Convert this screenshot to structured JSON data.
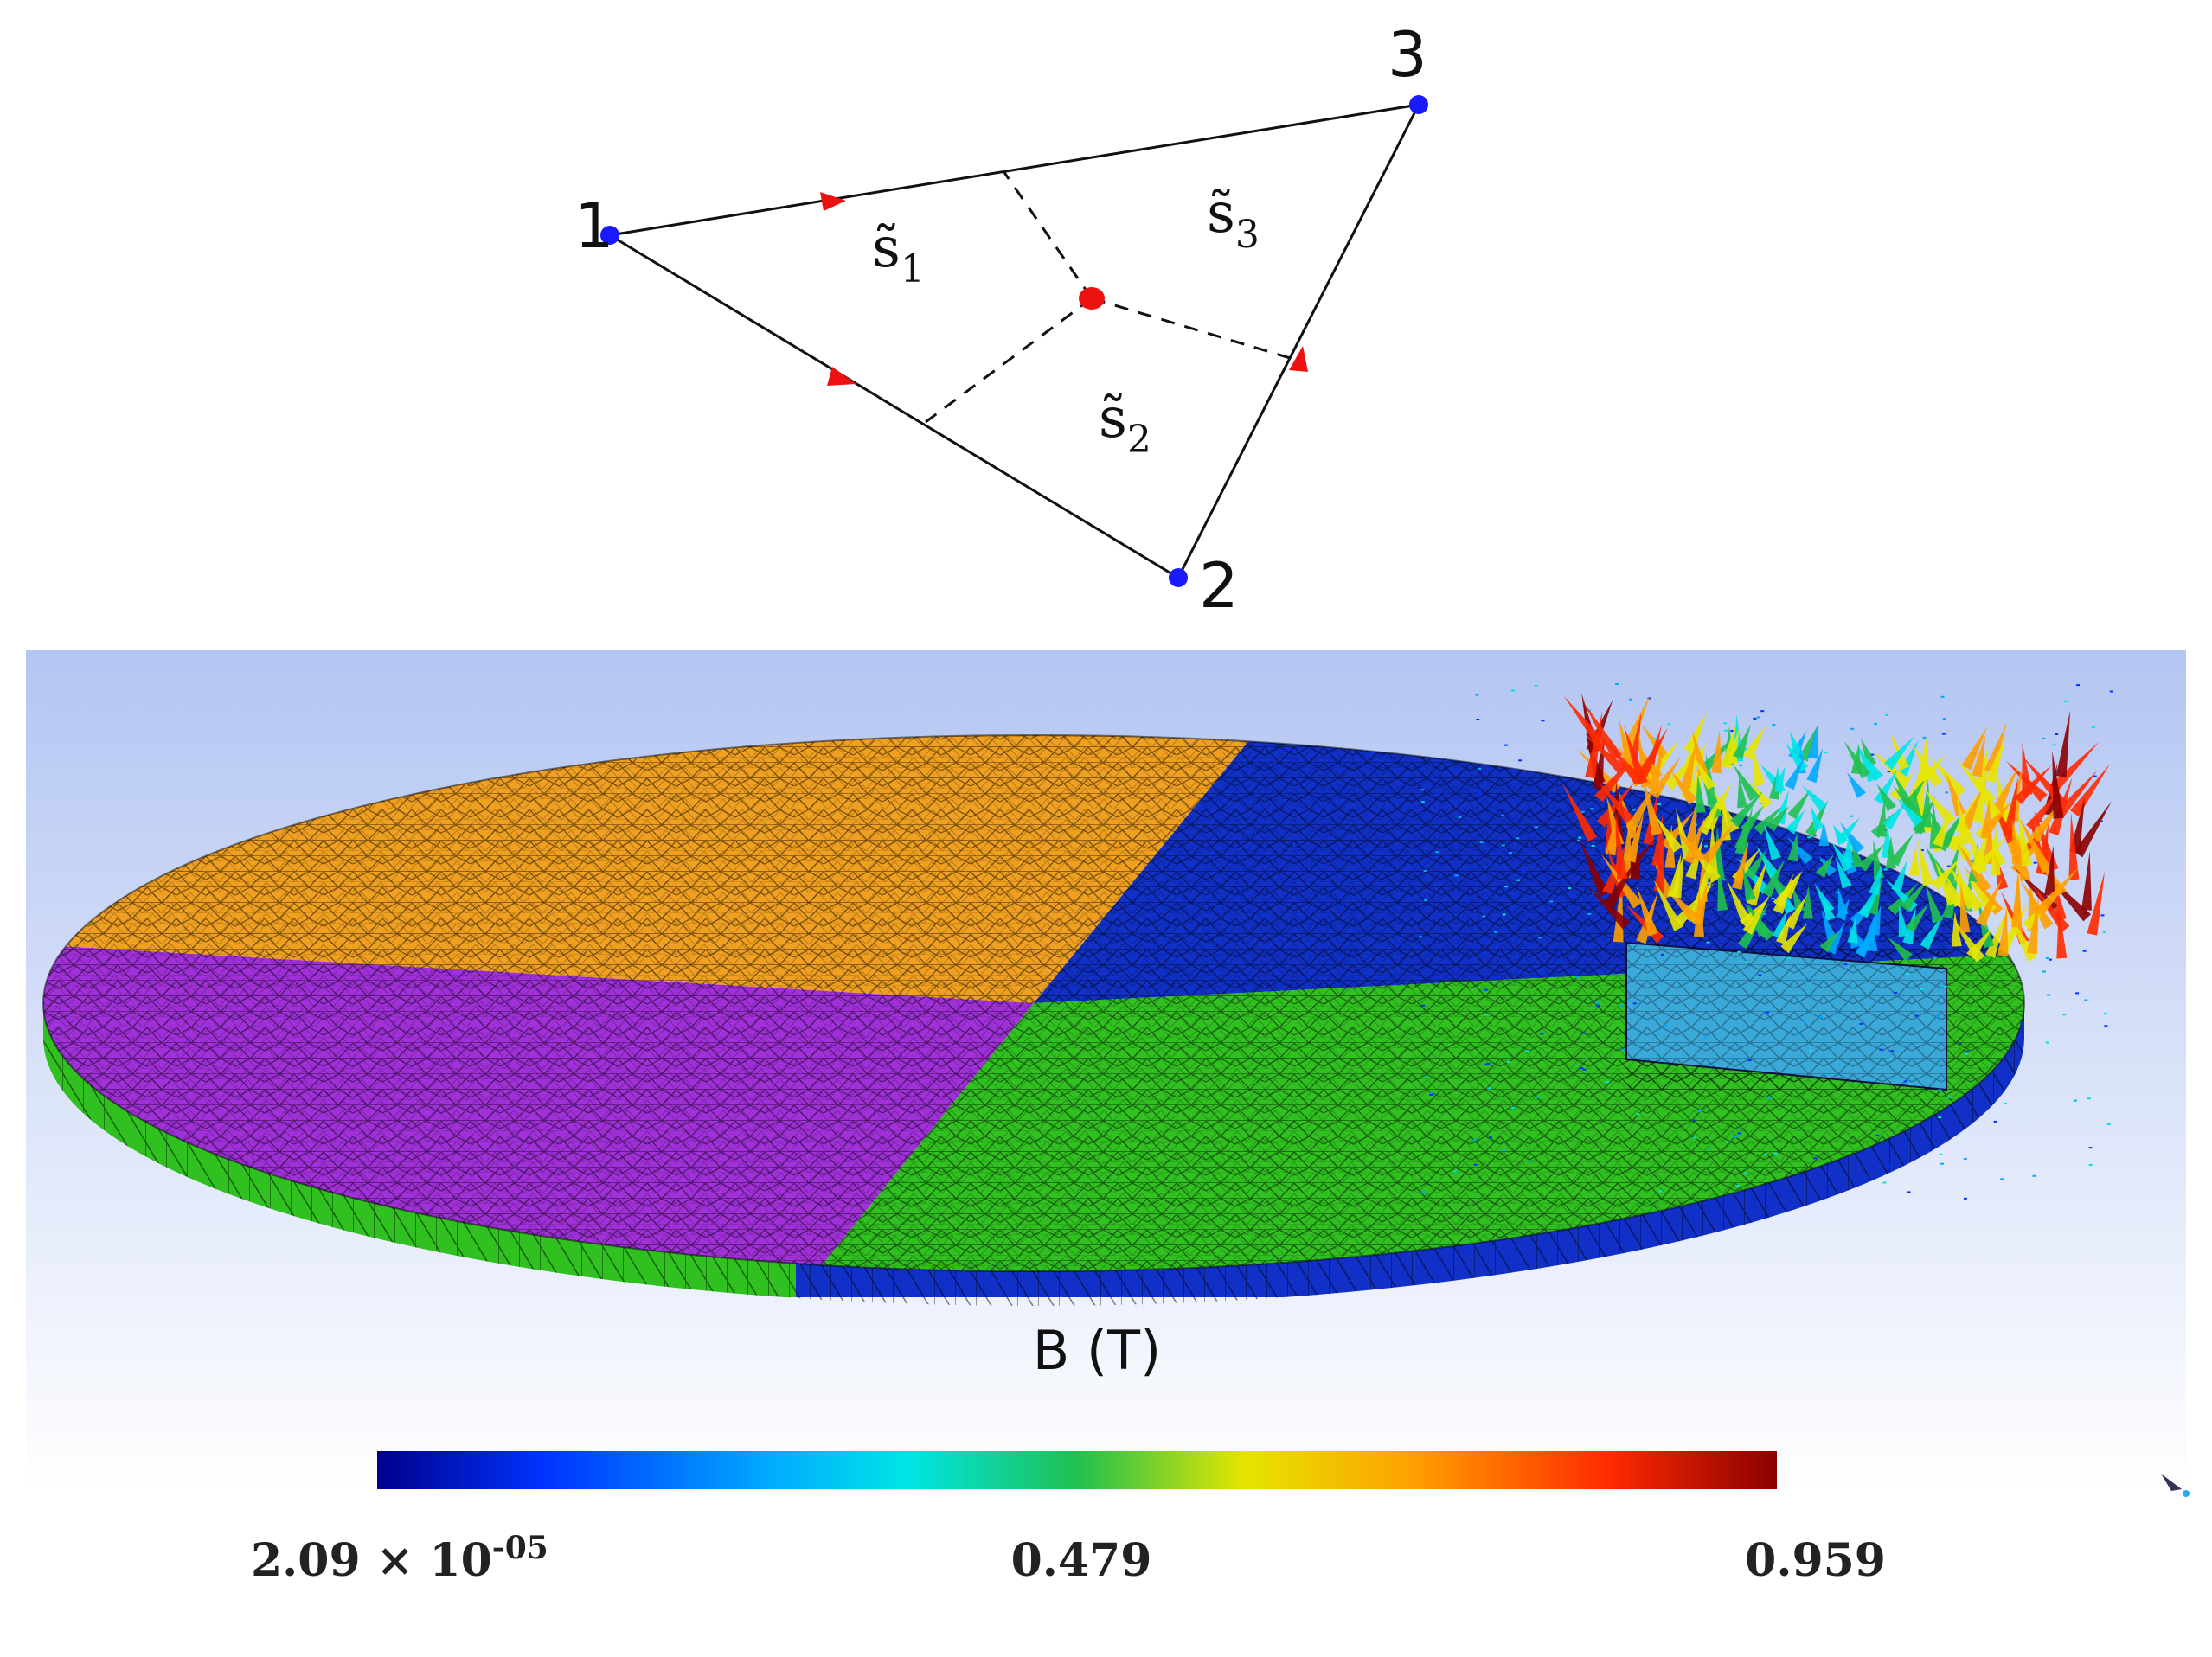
{
  "triangle": {
    "nodes": [
      {
        "id": "node-1",
        "label": "1"
      },
      {
        "id": "node-2",
        "label": "2"
      },
      {
        "id": "node-3",
        "label": "3"
      }
    ],
    "regions": [
      {
        "id": "region-s1",
        "letter": "s̃",
        "sub": "1"
      },
      {
        "id": "region-s2",
        "letter": "s̃",
        "sub": "2"
      },
      {
        "id": "region-s3",
        "letter": "s̃",
        "sub": "3"
      }
    ],
    "colors": {
      "node": "#1a1aff",
      "centroid": "#ee1111",
      "arrow": "#ee1111",
      "edge": "#111111"
    }
  },
  "simulation": {
    "field_label": "B (T)",
    "background": {
      "top": "#b3c5f2",
      "bottom": "#ffffff"
    },
    "sector_colors": {
      "orange": "#f0a020",
      "blue": "#1030c8",
      "purple": "#a030d8",
      "green": "#30c020"
    },
    "colorbar": {
      "stops": [
        "#00008b",
        "#0033ff",
        "#00aaff",
        "#00e5e5",
        "#20c050",
        "#e5e500",
        "#ffa000",
        "#ff2a00",
        "#8b0000"
      ],
      "min_mantissa": "2.09 × 10",
      "min_exponent": "-05",
      "mid": "0.479",
      "max": "0.959"
    }
  }
}
